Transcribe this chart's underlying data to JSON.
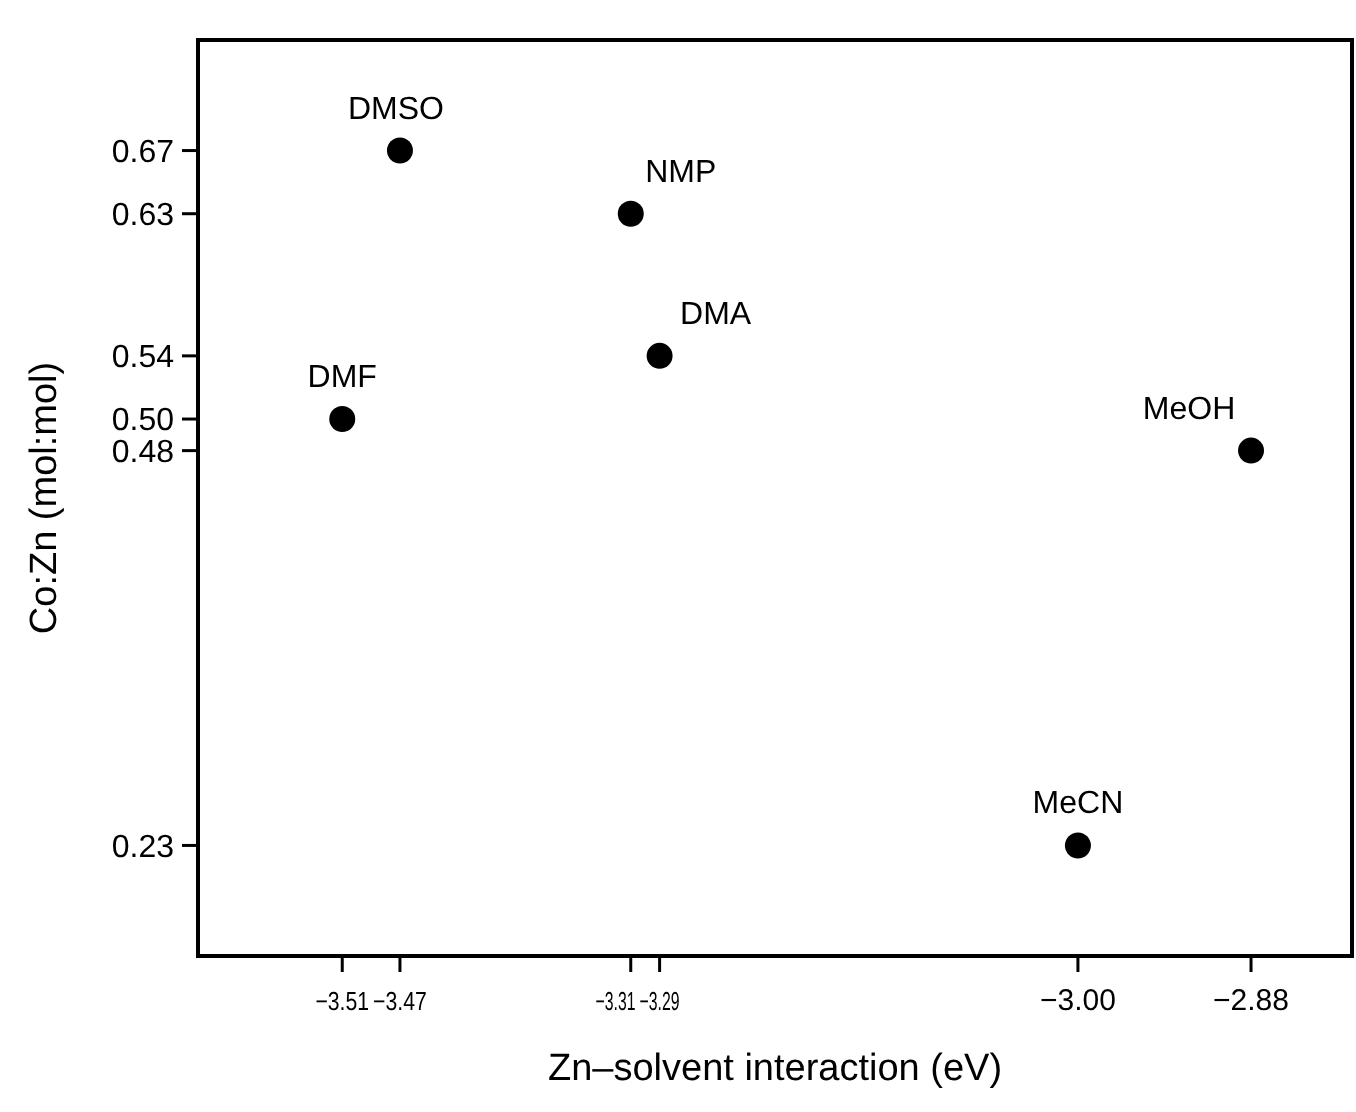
{
  "chart_data": {
    "type": "scatter",
    "xlabel": "Zn–solvent interaction (eV)",
    "ylabel": "Co:Zn (mol:mol)",
    "x": [
      -3.47,
      -3.31,
      -3.29,
      -3.51,
      -2.88,
      -3.0
    ],
    "series": [
      {
        "color": "#000000",
        "values": [
          0.67,
          0.63,
          0.54,
          0.5,
          0.48,
          0.23
        ]
      }
    ],
    "marker": "circle",
    "grid": false,
    "xlim": [
      -3.61,
      -2.81
    ],
    "ylim": [
      0.16,
      0.74
    ],
    "xticks": [
      {
        "value": -3.51,
        "label": "−3.51"
      },
      {
        "value": -3.47,
        "label": "−3.47"
      },
      {
        "value": -3.31,
        "label": "−3.31"
      },
      {
        "value": -3.29,
        "label": "−3.29"
      },
      {
        "value": -3.0,
        "label": "−3.00"
      },
      {
        "value": -2.88,
        "label": "−2.88"
      }
    ],
    "yticks": [
      {
        "value": 0.23,
        "label": "0.23"
      },
      {
        "value": 0.48,
        "label": "0.48"
      },
      {
        "value": 0.5,
        "label": "0.50"
      },
      {
        "value": 0.54,
        "label": "0.54"
      },
      {
        "value": 0.63,
        "label": "0.63"
      },
      {
        "value": 0.67,
        "label": "0.67"
      }
    ],
    "annotations": [
      {
        "text": "DMSO",
        "x": -3.47,
        "y": 0.67
      },
      {
        "text": "NMP",
        "x": -3.31,
        "y": 0.63
      },
      {
        "text": "DMA",
        "x": -3.29,
        "y": 0.54
      },
      {
        "text": "DMF",
        "x": -3.51,
        "y": 0.5
      },
      {
        "text": "MeOH",
        "x": -2.88,
        "y": 0.48
      },
      {
        "text": "MeCN",
        "x": -3.0,
        "y": 0.23
      }
    ]
  }
}
